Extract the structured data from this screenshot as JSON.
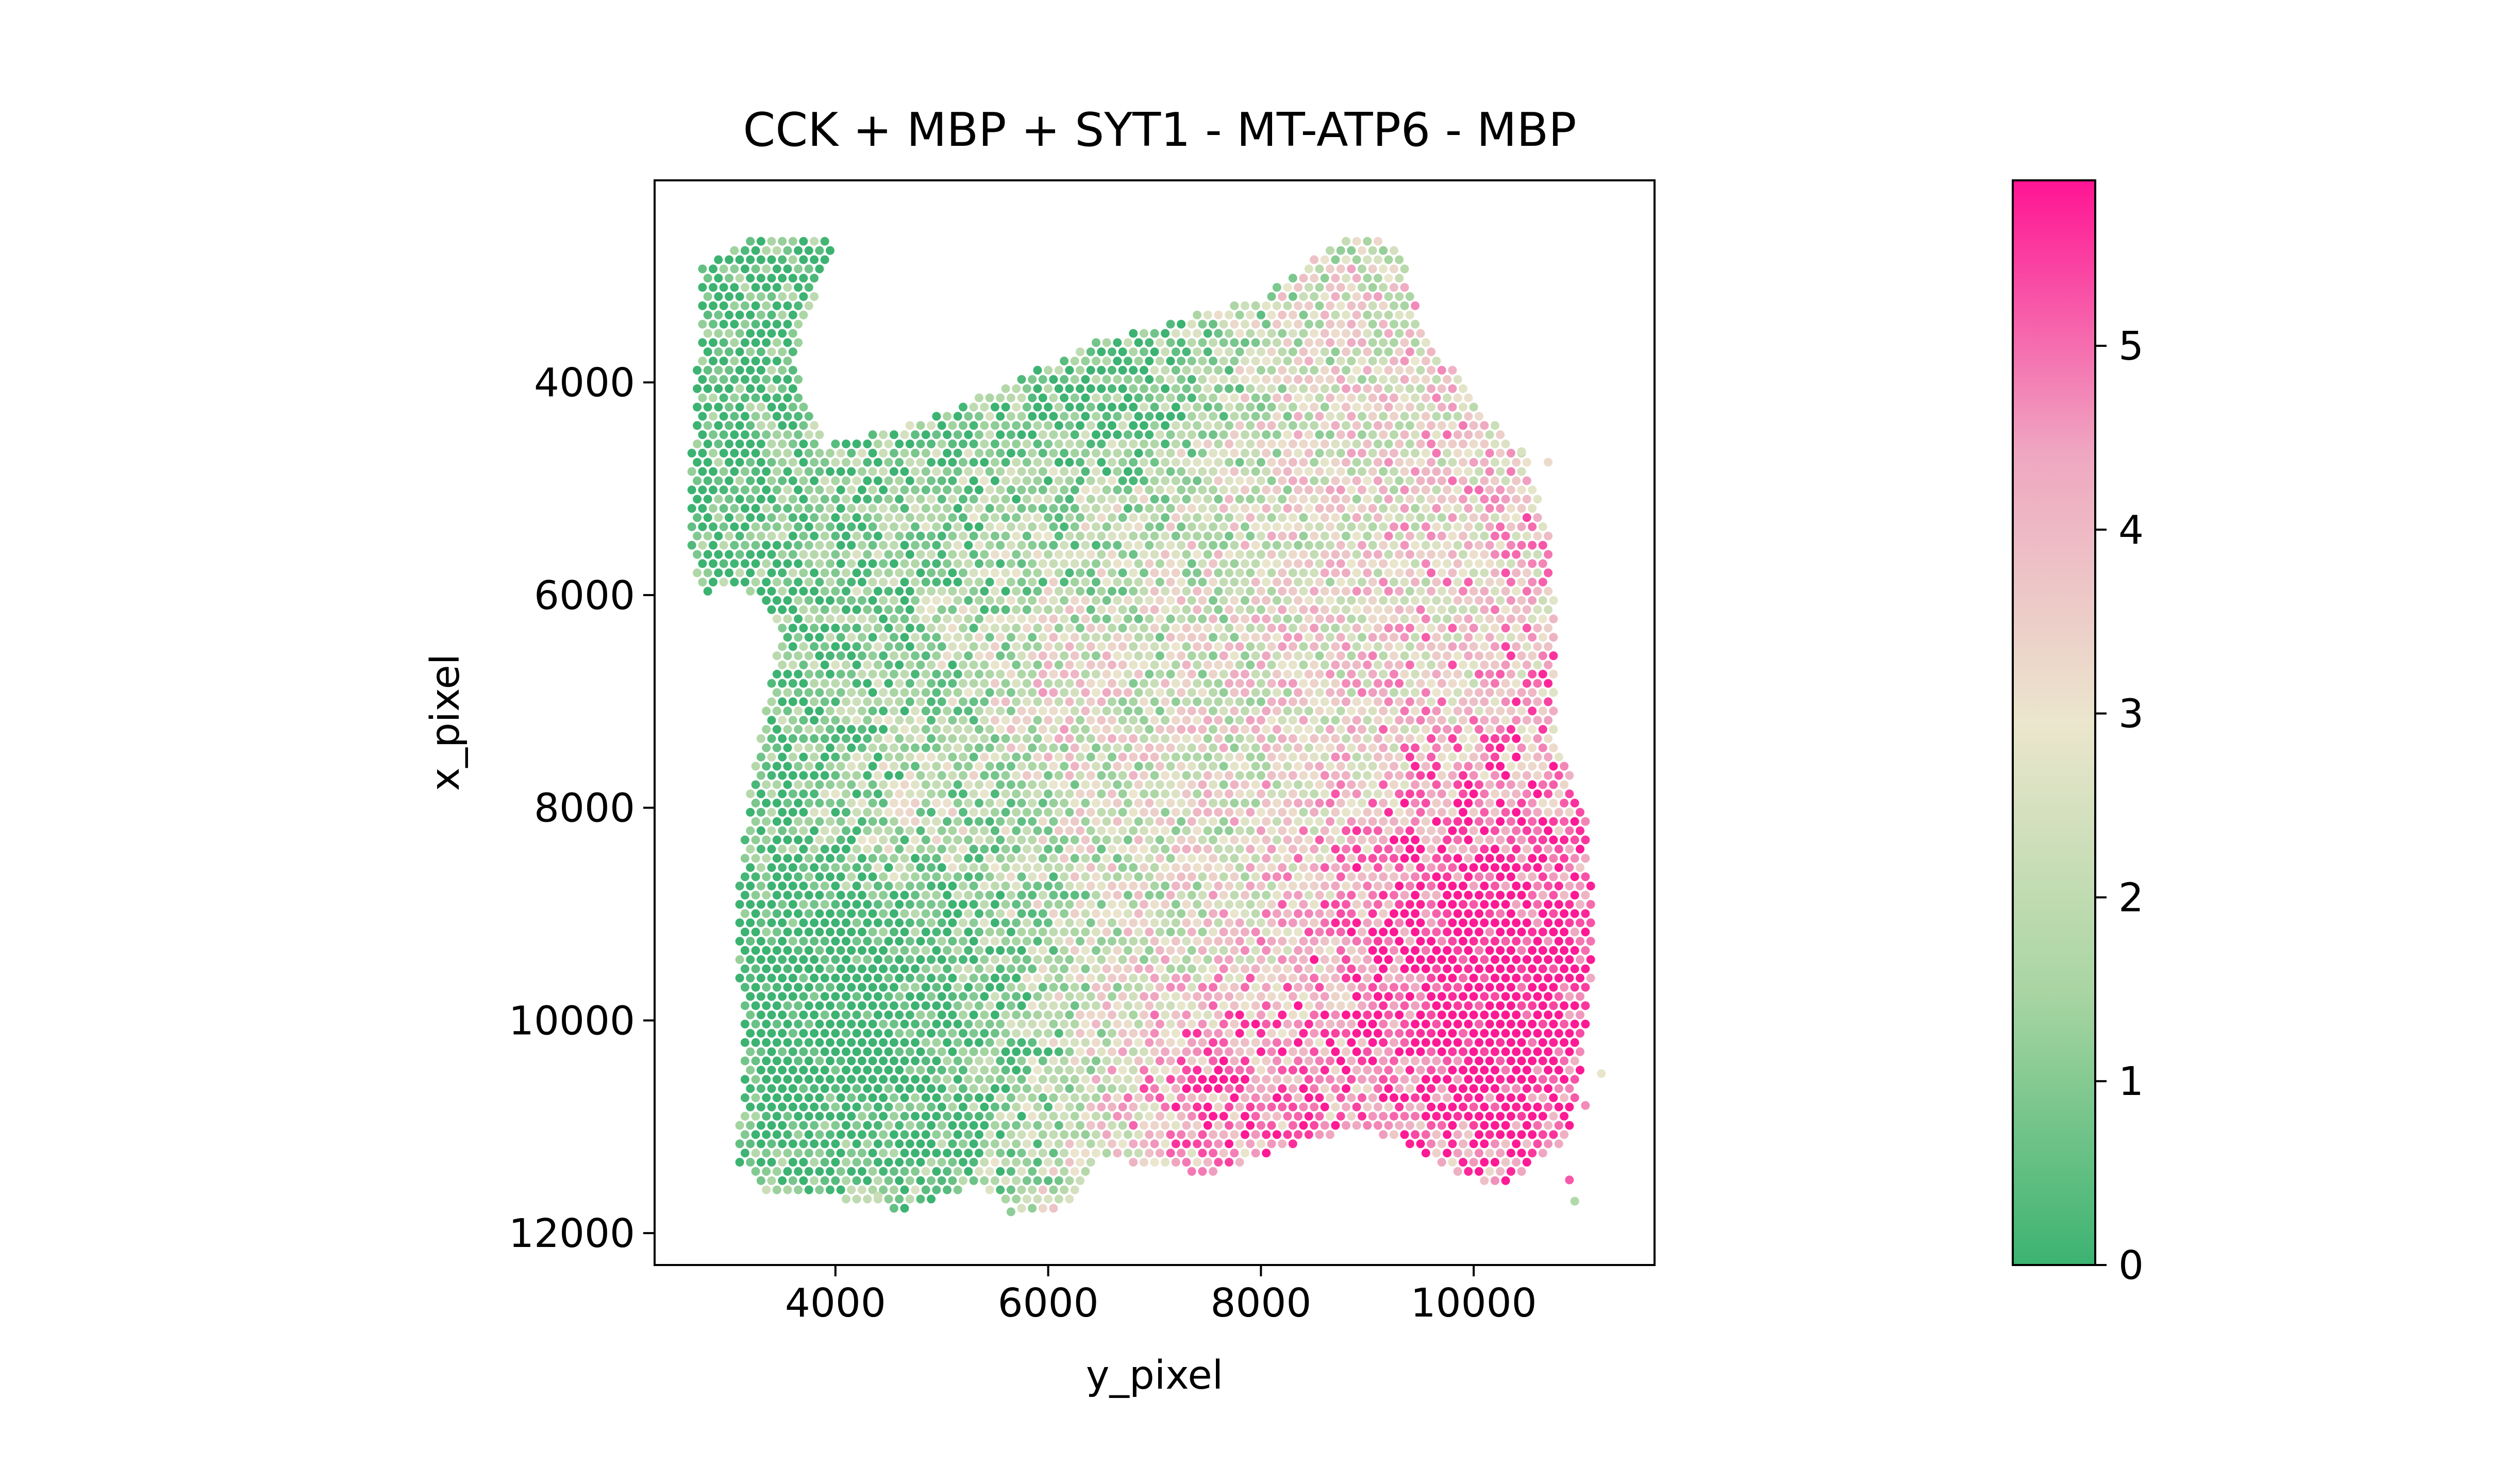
{
  "chart_data": {
    "type": "scatter",
    "title": "CCK + MBP + SYT1 - MT-ATP6 - MBP",
    "xlabel": "y_pixel",
    "ylabel": "x_pixel",
    "xlim": [
      2300,
      11700
    ],
    "ylim": [
      12300,
      2100
    ],
    "y_inverted": true,
    "xticks": [
      4000,
      6000,
      8000,
      10000
    ],
    "xtick_labels": [
      "4000",
      "6000",
      "8000",
      "10000"
    ],
    "yticks": [
      4000,
      6000,
      8000,
      10000,
      12000
    ],
    "ytick_labels": [
      "4000",
      "6000",
      "8000",
      "10000",
      "12000"
    ],
    "grid": false,
    "legend": "none",
    "spot_spacing": 100,
    "colorbar": {
      "range": [
        0,
        5.9
      ],
      "ticks": [
        0,
        1,
        2,
        3,
        4,
        5
      ],
      "tick_labels": [
        "0",
        "1",
        "2",
        "3",
        "4",
        "5"
      ],
      "colors": [
        "#3cb371",
        "#a8d5a2",
        "#ebe6cd",
        "#efa6c1",
        "#ff1493"
      ]
    },
    "tissue_outline": [
      [
        2750,
        2900
      ],
      [
        3300,
        2600
      ],
      [
        4000,
        2650
      ],
      [
        3600,
        3800
      ],
      [
        3900,
        4600
      ],
      [
        5000,
        4300
      ],
      [
        6500,
        3600
      ],
      [
        8000,
        3200
      ],
      [
        8800,
        2600
      ],
      [
        9300,
        2700
      ],
      [
        9500,
        3400
      ],
      [
        10000,
        4200
      ],
      [
        10500,
        4700
      ],
      [
        10700,
        5400
      ],
      [
        10800,
        6500
      ],
      [
        10800,
        7400
      ],
      [
        11050,
        8100
      ],
      [
        11150,
        9200
      ],
      [
        11050,
        10200
      ],
      [
        10900,
        11100
      ],
      [
        10200,
        11600
      ],
      [
        9000,
        11000
      ],
      [
        8200,
        11200
      ],
      [
        7500,
        11450
      ],
      [
        6500,
        11300
      ],
      [
        6200,
        11700
      ],
      [
        5900,
        11850
      ],
      [
        5300,
        11550
      ],
      [
        4600,
        11800
      ],
      [
        4300,
        11700
      ],
      [
        3300,
        11600
      ],
      [
        3050,
        11300
      ],
      [
        3150,
        10500
      ],
      [
        3050,
        9000
      ],
      [
        3200,
        7700
      ],
      [
        3500,
        6300
      ],
      [
        3100,
        5900
      ],
      [
        2750,
        6000
      ],
      [
        2600,
        5500
      ]
    ],
    "stray_spots": [
      [
        10450,
        4650,
        2.6
      ],
      [
        10700,
        4750,
        3.2
      ],
      [
        11200,
        10500,
        2.9
      ],
      [
        11050,
        10800,
        4.7
      ],
      [
        10900,
        11500,
        5.2
      ],
      [
        10950,
        11700,
        1.7
      ],
      [
        4400,
        11650,
        2.2
      ],
      [
        5650,
        11800,
        1.1
      ]
    ],
    "hotspots": [
      [
        7600,
        10700,
        1.9,
        700
      ],
      [
        10100,
        10100,
        2.0,
        900
      ],
      [
        9800,
        8800,
        1.4,
        900
      ],
      [
        6000,
        7000,
        1.1,
        500
      ],
      [
        4500,
        8200,
        0.9,
        500
      ],
      [
        3900,
        9800,
        -1.5,
        1100
      ],
      [
        4800,
        10600,
        -1.1,
        900
      ],
      [
        6300,
        3900,
        -1.0,
        800
      ],
      [
        7000,
        3600,
        -0.6,
        700
      ]
    ],
    "value_field": {
      "base": 2.4,
      "gradient_y": 0.00045,
      "gradient_x": 0.0001,
      "center_y": 7000,
      "center_x": 7500,
      "noise": 1.7
    }
  }
}
